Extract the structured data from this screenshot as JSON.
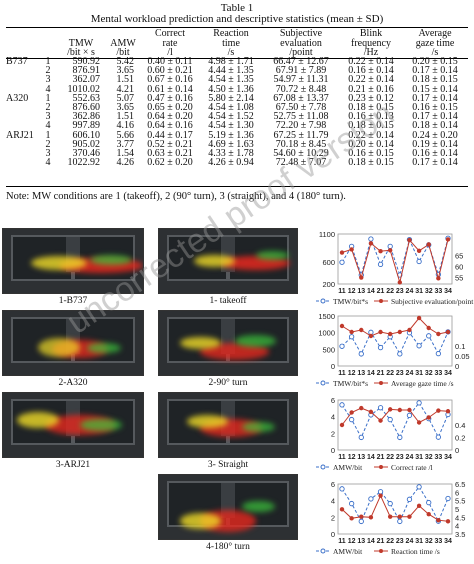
{
  "table": {
    "title": "Table 1",
    "subtitle": "Mental workload prediction and descriptive statistics (mean ± SD)",
    "headers": [
      {
        "lines": [
          "",
          ""
        ]
      },
      {
        "lines": [
          ""
        ]
      },
      {
        "lines": [
          "TMW",
          "/bit × s"
        ]
      },
      {
        "lines": [
          "AMW",
          "/bit"
        ]
      },
      {
        "lines": [
          "Correct",
          "rate",
          "/l"
        ]
      },
      {
        "lines": [
          "Reaction",
          "time",
          "/s"
        ]
      },
      {
        "lines": [
          "Subjective",
          "evaluation",
          "/point"
        ]
      },
      {
        "lines": [
          "Blink",
          "frequency",
          "/Hz"
        ]
      },
      {
        "lines": [
          "Average",
          "gaze time",
          "/s"
        ]
      }
    ],
    "rows": [
      [
        "B737",
        "1",
        "590.92",
        "5.42",
        "0.40 ± 0.11",
        "4.98 ± 1.71",
        "66.47 ± 12.67",
        "0.22 ± 0.14",
        "0.20 ± 0.15"
      ],
      [
        "",
        "2",
        "876.91",
        "3.65",
        "0.60 ± 0.21",
        "4.44 ± 1.35",
        "67.91 ± 7.89",
        "0.16 ± 0.14",
        "0.17 ± 0.14"
      ],
      [
        "",
        "3",
        "362.07",
        "1.51",
        "0.67 ± 0.16",
        "4.54 ± 1.35",
        "54.97 ± 11.31",
        "0.22 ± 0.14",
        "0.18 ± 0.15"
      ],
      [
        "",
        "4",
        "1010.02",
        "4.21",
        "0.61 ± 0.14",
        "4.50 ± 1.36",
        "70.72 ± 8.48",
        "0.21 ± 0.16",
        "0.15 ± 0.14"
      ],
      [
        "A320",
        "1",
        "552.63",
        "5.07",
        "0.47 ± 0.16",
        "5.80 ± 2.14",
        "67.08 ± 13.37",
        "0.23 ± 0.12",
        "0.17 ± 0.14"
      ],
      [
        "",
        "2",
        "876.60",
        "3.65",
        "0.65 ± 0.20",
        "4.54 ± 1.08",
        "67.50 ± 7.78",
        "0.18 ± 0.15",
        "0.16 ± 0.15"
      ],
      [
        "",
        "3",
        "362.86",
        "1.51",
        "0.64 ± 0.20",
        "4.54 ± 1.52",
        "52.75 ± 11.08",
        "0.16 ± 0.13",
        "0.17 ± 0.14"
      ],
      [
        "",
        "4",
        "997.89",
        "4.16",
        "0.64 ± 0.16",
        "4.54 ± 1.30",
        "72.20 ± 7.98",
        "0.18 ± 0.15",
        "0.18 ± 0.14"
      ],
      [
        "ARJ21",
        "1",
        "606.10",
        "5.66",
        "0.44 ± 0.17",
        "5.19 ± 1.36",
        "67.25 ± 11.79",
        "0.22 ± 0.14",
        "0.24 ± 0.20"
      ],
      [
        "",
        "2",
        "905.02",
        "3.77",
        "0.52 ± 0.21",
        "4.69 ± 1.63",
        "70.18 ± 8.45",
        "0.20 ± 0.14",
        "0.19 ± 0.14"
      ],
      [
        "",
        "3",
        "370.46",
        "1.54",
        "0.63 ± 0.21",
        "4.33 ± 1.78",
        "54.60 ± 10.29",
        "0.16 ± 0.15",
        "0.16 ± 0.14"
      ],
      [
        "",
        "4",
        "1022.92",
        "4.26",
        "0.62 ± 0.20",
        "4.26 ± 0.94",
        "72.48 ± 7.07",
        "0.18 ± 0.15",
        "0.17 ± 0.14"
      ]
    ],
    "note": "Note: MW conditions are 1 (takeoff), 2 (90° turn), 3 (straight), and 4 (180° turn)."
  },
  "heatmaps": {
    "left": [
      "1-B737",
      "2-A320",
      "3-ARJ21"
    ],
    "right": [
      "1- takeoff",
      "2-90° turn",
      "3- Straight",
      "4-180° turn"
    ]
  },
  "watermark": "uncorrected proof version",
  "chart_data": [
    {
      "type": "line",
      "x": [
        "11",
        "12",
        "13",
        "14",
        "21",
        "22",
        "23",
        "24",
        "31",
        "32",
        "33",
        "34"
      ],
      "series": [
        {
          "name": "TMW/bit*s",
          "axis": "left",
          "values": [
            590.92,
            876.91,
            362.07,
            1010.02,
            552.63,
            876.6,
            362.86,
            997.89,
            606.1,
            905.02,
            370.46,
            1022.92
          ]
        },
        {
          "name": "Subjective evaluation/point",
          "axis": "right",
          "values": [
            66.47,
            67.91,
            54.97,
            70.72,
            67.08,
            67.5,
            52.75,
            72.2,
            67.25,
            70.18,
            54.6,
            72.48
          ]
        }
      ],
      "yleft": {
        "ticks": [
          "200",
          "600",
          "1100"
        ],
        "range": [
          200,
          1100
        ]
      },
      "yright": {
        "ticks": [
          "55",
          "60",
          "65"
        ],
        "range": [
          52,
          75
        ]
      },
      "legend": [
        "TMW/bit*s",
        "Subjective evaluation/point"
      ]
    },
    {
      "type": "line",
      "x": [
        "11",
        "12",
        "13",
        "14",
        "21",
        "22",
        "23",
        "24",
        "31",
        "32",
        "33",
        "34"
      ],
      "series": [
        {
          "name": "TMW/bit*s",
          "axis": "left",
          "values": [
            590.92,
            876.91,
            362.07,
            1010.02,
            552.63,
            876.6,
            362.86,
            997.89,
            606.1,
            905.02,
            370.46,
            1022.92
          ]
        },
        {
          "name": "Average gaze time /s",
          "axis": "right",
          "values": [
            0.2,
            0.17,
            0.18,
            0.15,
            0.17,
            0.16,
            0.17,
            0.18,
            0.24,
            0.19,
            0.16,
            0.17
          ]
        }
      ],
      "yleft": {
        "ticks": [
          "0",
          "500",
          "1000",
          "1500"
        ],
        "range": [
          0,
          1500
        ]
      },
      "yright": {
        "ticks": [
          "0",
          "0.05",
          "0.1"
        ],
        "range": [
          0,
          0.25
        ]
      },
      "legend": [
        "TMW/bit*s",
        "Average gaze time /s"
      ]
    },
    {
      "type": "line",
      "x": [
        "11",
        "12",
        "13",
        "14",
        "21",
        "22",
        "23",
        "24",
        "31",
        "32",
        "33",
        "34"
      ],
      "series": [
        {
          "name": "AMW/bit",
          "axis": "left",
          "values": [
            5.42,
            3.65,
            1.51,
            4.21,
            5.07,
            3.65,
            1.51,
            4.16,
            5.66,
            3.77,
            1.54,
            4.26
          ]
        },
        {
          "name": "Correct rate /l",
          "axis": "right",
          "values": [
            0.4,
            0.6,
            0.67,
            0.61,
            0.47,
            0.65,
            0.64,
            0.64,
            0.44,
            0.52,
            0.63,
            0.62
          ]
        }
      ],
      "yleft": {
        "ticks": [
          "0",
          "2",
          "4",
          "6"
        ],
        "range": [
          0,
          6
        ]
      },
      "yright": {
        "ticks": [
          "0",
          "0.2",
          "0.4"
        ],
        "range": [
          0,
          0.8
        ]
      },
      "legend": [
        "AMW/bit",
        "Correct rate /l"
      ]
    },
    {
      "type": "line",
      "x": [
        "11",
        "12",
        "13",
        "14",
        "21",
        "22",
        "23",
        "24",
        "31",
        "32",
        "33",
        "34"
      ],
      "series": [
        {
          "name": "AMW/bit",
          "axis": "left",
          "values": [
            5.42,
            3.65,
            1.51,
            4.21,
            5.07,
            3.65,
            1.51,
            4.16,
            5.66,
            3.77,
            1.54,
            4.26
          ]
        },
        {
          "name": "Reaction time /s",
          "axis": "right",
          "values": [
            4.98,
            4.44,
            4.54,
            4.5,
            5.8,
            4.54,
            4.54,
            4.54,
            5.19,
            4.69,
            4.33,
            4.26
          ]
        }
      ],
      "yleft": {
        "ticks": [
          "0",
          "2",
          "4",
          "6"
        ],
        "range": [
          0,
          6
        ]
      },
      "yright": {
        "ticks": [
          "3.5",
          "4",
          "4.5",
          "5",
          "5.5",
          "6",
          "6.5"
        ],
        "range": [
          3.5,
          6.5
        ]
      },
      "legend": [
        "AMW/bit",
        "Reaction time /s"
      ]
    }
  ]
}
